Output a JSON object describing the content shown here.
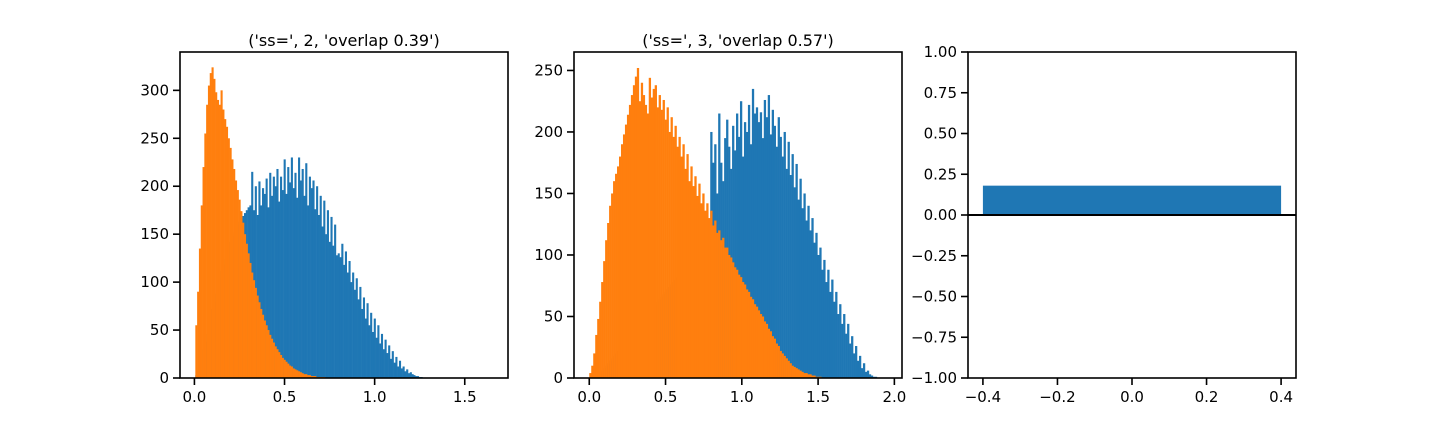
{
  "colors": {
    "blue": "#1f77b4",
    "orange": "#ff7f0e",
    "axis": "#000000",
    "background": "#ffffff"
  },
  "chart_data": [
    {
      "type": "histogram",
      "title": "('ss=', 2, 'overlap 0.39')",
      "xlabel": "",
      "ylabel": "",
      "xlim": [
        -0.08,
        1.74
      ],
      "ylim": [
        0,
        340
      ],
      "xticks": [
        0.0,
        0.5,
        1.0,
        1.5
      ],
      "xtick_labels": [
        "0.0",
        "0.5",
        "1.0",
        "1.5"
      ],
      "yticks": [
        0,
        50,
        100,
        150,
        200,
        250,
        300
      ],
      "ytick_labels": [
        "0",
        "50",
        "100",
        "150",
        "200",
        "250",
        "300"
      ],
      "grid": false,
      "series": [
        {
          "color": "blue",
          "bins": {
            "start": 0.005,
            "width": 0.01
          },
          "counts": [
            3,
            8,
            14,
            22,
            30,
            38,
            46,
            55,
            63,
            72,
            80,
            88,
            96,
            104,
            112,
            118,
            124,
            130,
            136,
            142,
            148,
            152,
            156,
            160,
            163,
            166,
            169,
            172,
            175,
            178,
            180,
            215,
            175,
            200,
            170,
            205,
            180,
            198,
            192,
            208,
            178,
            214,
            190,
            210,
            200,
            218,
            184,
            210,
            196,
            228,
            192,
            220,
            204,
            230,
            198,
            214,
            188,
            230,
            206,
            218,
            190,
            224,
            180,
            210,
            198,
            206,
            176,
            200,
            170,
            190,
            158,
            185,
            150,
            175,
            142,
            168,
            138,
            160,
            128,
            130,
            126,
            140,
            118,
            132,
            110,
            122,
            100,
            110,
            92,
            104,
            82,
            95,
            72,
            84,
            62,
            78,
            55,
            68,
            48,
            62,
            42,
            55,
            36,
            46,
            30,
            40,
            26,
            34,
            20,
            28,
            16,
            22,
            12,
            18,
            10,
            12,
            7,
            9,
            5,
            6,
            4,
            3,
            2,
            2,
            1,
            1,
            0,
            0,
            0,
            0,
            0,
            0,
            0,
            0,
            0,
            0,
            0,
            0,
            0,
            0,
            0,
            0,
            0,
            0,
            0,
            0,
            0,
            0,
            0,
            0,
            0,
            0,
            0,
            0,
            0,
            0,
            0,
            0,
            0,
            0
          ]
        },
        {
          "color": "orange",
          "bins": {
            "start": 0.005,
            "width": 0.01
          },
          "counts": [
            55,
            90,
            135,
            180,
            220,
            255,
            285,
            305,
            318,
            324,
            312,
            298,
            290,
            285,
            300,
            280,
            270,
            262,
            250,
            240,
            228,
            218,
            206,
            196,
            186,
            174,
            162,
            150,
            140,
            130,
            120,
            110,
            102,
            94,
            86,
            79,
            72,
            66,
            60,
            55,
            50,
            45,
            41,
            37,
            33,
            30,
            27,
            24,
            21,
            19,
            17,
            15,
            13,
            12,
            10,
            9,
            8,
            7,
            6,
            5,
            4,
            4,
            3,
            3,
            2,
            2,
            2,
            1,
            1,
            1,
            1,
            1,
            0,
            0,
            0,
            0,
            0,
            0,
            0,
            0,
            0,
            0,
            0,
            0,
            0,
            0,
            0,
            0,
            0,
            0,
            0,
            0,
            0,
            0,
            0,
            0,
            0,
            0,
            0,
            0,
            0,
            0,
            0,
            0,
            0,
            0,
            0,
            0,
            0,
            0,
            0,
            0,
            0,
            0,
            0,
            0,
            0,
            0,
            0,
            0,
            0,
            0,
            0,
            0,
            0,
            0,
            0,
            0,
            0,
            0,
            0,
            0,
            0,
            0,
            0,
            0,
            0,
            0,
            0,
            0,
            0,
            0,
            0,
            0,
            0,
            0,
            0,
            0,
            0,
            0,
            0,
            0,
            0,
            0,
            0,
            0,
            0,
            0,
            0,
            0
          ]
        }
      ]
    },
    {
      "type": "histogram",
      "title": "('ss=', 3, 'overlap 0.57')",
      "xlabel": "",
      "ylabel": "",
      "xlim": [
        -0.1,
        2.05
      ],
      "ylim": [
        0,
        265
      ],
      "xticks": [
        0.0,
        0.5,
        1.0,
        1.5,
        2.0
      ],
      "xtick_labels": [
        "0.0",
        "0.5",
        "1.0",
        "1.5",
        "2.0"
      ],
      "yticks": [
        0,
        50,
        100,
        150,
        200,
        250
      ],
      "ytick_labels": [
        "0",
        "50",
        "100",
        "150",
        "200",
        "250"
      ],
      "grid": false,
      "series": [
        {
          "color": "blue",
          "bins": {
            "start": 0.0,
            "width": 0.013
          },
          "counts": [
            0,
            1,
            2,
            3,
            4,
            5,
            6,
            8,
            10,
            12,
            14,
            16,
            18,
            20,
            22,
            24,
            26,
            28,
            30,
            32,
            34,
            36,
            38,
            40,
            42,
            44,
            46,
            48,
            50,
            52,
            54,
            56,
            58,
            60,
            62,
            64,
            66,
            68,
            70,
            72,
            74,
            76,
            78,
            80,
            82,
            84,
            86,
            88,
            90,
            92,
            94,
            96,
            98,
            100,
            102,
            104,
            106,
            108,
            110,
            112,
            120,
            200,
            175,
            190,
            150,
            215,
            175,
            160,
            195,
            210,
            188,
            170,
            205,
            185,
            215,
            196,
            225,
            180,
            208,
            200,
            222,
            190,
            235,
            215,
            220,
            208,
            216,
            195,
            226,
            212,
            230,
            198,
            218,
            205,
            188,
            212,
            196,
            180,
            200,
            170,
            192,
            165,
            182,
            155,
            174,
            145,
            162,
            138,
            150,
            128,
            140,
            120,
            130,
            110,
            118,
            100,
            106,
            88,
            96,
            78,
            88,
            70,
            80,
            62,
            70,
            52,
            60,
            44,
            52,
            36,
            44,
            28,
            34,
            20,
            26,
            14,
            18,
            8,
            12,
            5,
            6,
            3,
            2,
            1,
            1,
            0,
            0,
            0,
            0,
            0,
            0,
            0,
            0,
            0,
            0
          ]
        },
        {
          "color": "orange",
          "bins": {
            "start": 0.0,
            "width": 0.013
          },
          "counts": [
            4,
            10,
            20,
            35,
            48,
            62,
            78,
            95,
            112,
            126,
            140,
            150,
            160,
            166,
            172,
            180,
            190,
            198,
            206,
            214,
            222,
            230,
            238,
            245,
            252,
            225,
            240,
            230,
            222,
            215,
            244,
            228,
            235,
            238,
            220,
            230,
            218,
            226,
            210,
            220,
            200,
            212,
            196,
            205,
            188,
            196,
            180,
            190,
            170,
            182,
            160,
            172,
            156,
            164,
            148,
            158,
            142,
            150,
            136,
            142,
            130,
            136,
            124,
            128,
            118,
            120,
            112,
            114,
            106,
            106,
            100,
            98,
            94,
            90,
            88,
            84,
            82,
            78,
            76,
            72,
            70,
            66,
            64,
            60,
            58,
            55,
            52,
            50,
            46,
            44,
            40,
            38,
            34,
            32,
            28,
            26,
            22,
            20,
            18,
            16,
            14,
            12,
            10,
            9,
            8,
            7,
            6,
            5,
            4,
            4,
            3,
            3,
            2,
            2,
            1,
            1,
            1,
            0,
            0,
            0,
            0,
            0,
            0,
            0,
            0,
            0,
            0,
            0,
            0,
            0,
            0,
            0,
            0,
            0,
            0,
            0,
            0,
            0,
            0,
            0,
            0,
            0,
            0,
            0,
            0,
            0,
            0,
            0,
            0,
            0,
            0,
            0,
            0,
            0,
            0,
            0,
            0
          ]
        }
      ]
    },
    {
      "type": "bar",
      "title": "",
      "xlabel": "",
      "ylabel": "",
      "xlim": [
        -0.44,
        0.44
      ],
      "ylim": [
        -1.0,
        1.0
      ],
      "xticks": [
        -0.4,
        -0.2,
        0.0,
        0.2,
        0.4
      ],
      "xtick_labels": [
        "−0.4",
        "−0.2",
        "0.0",
        "0.2",
        "0.4"
      ],
      "yticks": [
        -1.0,
        -0.75,
        -0.5,
        -0.25,
        0.0,
        0.25,
        0.5,
        0.75,
        1.0
      ],
      "ytick_labels": [
        "−1.00",
        "−0.75",
        "−0.50",
        "−0.25",
        "0.00",
        "0.25",
        "0.50",
        "0.75",
        "1.00"
      ],
      "grid": false,
      "categories": [
        0
      ],
      "bar_width": 0.8,
      "values": [
        0.18
      ],
      "color": "blue",
      "hline": 0.0
    }
  ]
}
